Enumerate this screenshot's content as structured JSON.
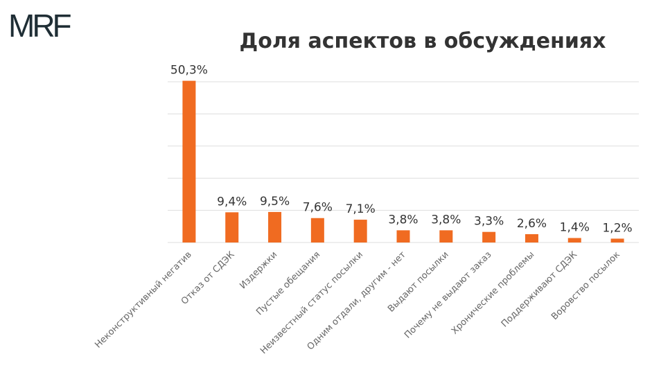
{
  "brand": {
    "logo_text": "MRF"
  },
  "chart_data": {
    "type": "bar",
    "title": "Доля аспектов в обсуждениях",
    "categories": [
      "Неконструктивный негатив",
      "Отказ от СДЭК",
      "Издержки",
      "Пустые обещания",
      "Неизвестный статус посылки",
      "Одним отдали, другим - нет",
      "Выдают посылки",
      "Почему не выдают заказ",
      "Хронические проблемы",
      "Поддерживают СДЭК",
      "Воровство посылок"
    ],
    "values": [
      50.3,
      9.4,
      9.5,
      7.6,
      7.1,
      3.8,
      3.8,
      3.3,
      2.6,
      1.4,
      1.2
    ],
    "data_labels": [
      "50,3%",
      "9,4%",
      "9,5%",
      "7,6%",
      "7,1%",
      "3,8%",
      "3,8%",
      "3,3%",
      "2,6%",
      "1,4%",
      "1,2%"
    ],
    "ylim": [
      0,
      50
    ],
    "gridlines": true,
    "bar_color": "#f06b21",
    "grid_color": "#dddddd"
  }
}
